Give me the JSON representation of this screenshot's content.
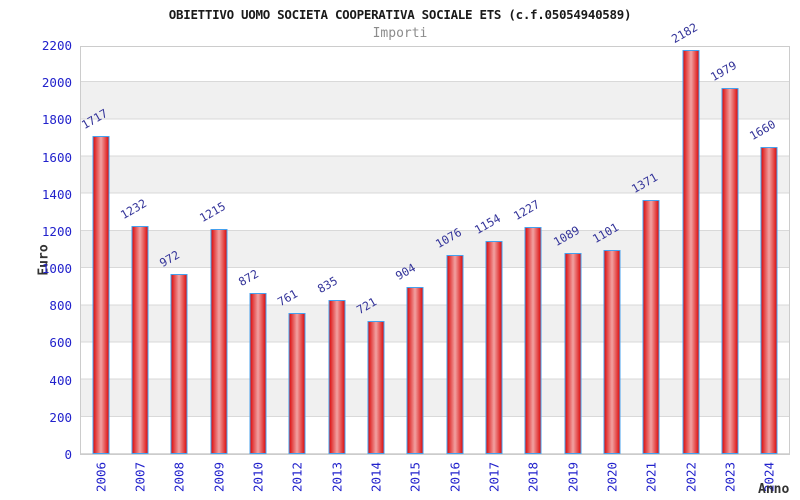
{
  "chart_data": {
    "type": "bar",
    "title": "OBIETTIVO UOMO SOCIETA COOPERATIVA SOCIALE ETS (c.f.05054940589)",
    "subtitle": "Importi",
    "xlabel": "Anno",
    "ylabel": "Euro",
    "categories": [
      "2006",
      "2007",
      "2008",
      "2009",
      "2010",
      "2012",
      "2013",
      "2014",
      "2015",
      "2016",
      "2017",
      "2018",
      "2019",
      "2020",
      "2021",
      "2022",
      "2023",
      "2024"
    ],
    "values": [
      1717,
      1232,
      972,
      1215,
      872,
      761,
      835,
      721,
      904,
      1076,
      1154,
      1227,
      1089,
      1101,
      1371,
      2182,
      1979,
      1660
    ],
    "ylim": [
      0,
      2200
    ],
    "ytick_step": 200,
    "yticks": [
      0,
      200,
      400,
      600,
      800,
      1000,
      1200,
      1400,
      1600,
      1800,
      2000,
      2200
    ],
    "grid": true,
    "legend": "none",
    "bar_value_labels_rotation_deg": -30,
    "x_tick_rotation_deg": -90
  },
  "colors": {
    "title": "#1a1a1a",
    "subtitle": "#8c8c8c",
    "axis_title": "#333333",
    "tick_label": "#2222cc",
    "value_label": "#333399",
    "bar_edge": "#dd1111",
    "bar_center": "#f2a2a2",
    "bar_border": "#44a0ee",
    "band": "#f0f0f0",
    "gridline": "#d9d9d9",
    "frame": "#cccccc",
    "background": "#ffffff"
  }
}
